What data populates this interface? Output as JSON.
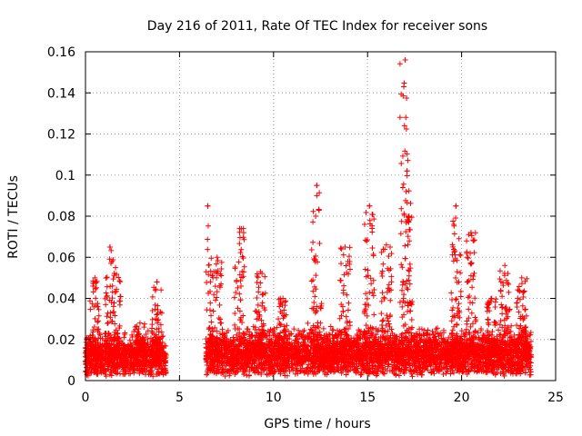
{
  "chart_data": {
    "type": "scatter",
    "title": "Day 216 of 2011, Rate Of TEC Index for receiver sons",
    "xlabel": "GPS time / hours",
    "ylabel": "ROTI / TECUs",
    "xlim": [
      0,
      25
    ],
    "ylim": [
      0,
      0.16
    ],
    "x_ticks": [
      0,
      5,
      10,
      15,
      20,
      25
    ],
    "x_tick_labels": [
      "0",
      "5",
      "10",
      "15",
      "20",
      "25"
    ],
    "y_ticks": [
      0,
      0.02,
      0.04,
      0.06,
      0.08,
      0.1,
      0.12,
      0.14,
      0.16
    ],
    "y_tick_labels": [
      "0",
      "0.02",
      "0.04",
      "0.06",
      "0.08",
      "0.1",
      "0.12",
      "0.14",
      "0.16"
    ],
    "grid": true,
    "marker": "plus",
    "color": "#ff0000",
    "series": [
      {
        "name": "ROTI",
        "segments": [
          {
            "start": 0.0,
            "end": 4.3,
            "base": 0.012,
            "spread": 0.008,
            "peaks": [
              [
                0.5,
                0.05
              ],
              [
                1.3,
                0.065
              ],
              [
                1.6,
                0.055
              ],
              [
                2.9,
                0.028
              ],
              [
                3.8,
                0.048
              ]
            ]
          },
          {
            "start": 6.4,
            "end": 23.7,
            "base": 0.013,
            "spread": 0.009,
            "peaks": [
              [
                6.5,
                0.085
              ],
              [
                7.0,
                0.06
              ],
              [
                8.2,
                0.074
              ],
              [
                9.3,
                0.053
              ],
              [
                10.5,
                0.04
              ],
              [
                12.3,
                0.095
              ],
              [
                13.8,
                0.065
              ],
              [
                15.1,
                0.085
              ],
              [
                16.0,
                0.066
              ],
              [
                17.0,
                0.156
              ],
              [
                17.1,
                0.102
              ],
              [
                19.7,
                0.085
              ],
              [
                20.5,
                0.072
              ],
              [
                21.6,
                0.04
              ],
              [
                22.3,
                0.056
              ],
              [
                23.2,
                0.05
              ]
            ]
          }
        ],
        "notable_points": [
          {
            "x": 6.5,
            "y": 0.085
          },
          {
            "x": 8.4,
            "y": 0.074
          },
          {
            "x": 12.3,
            "y": 0.095
          },
          {
            "x": 12.3,
            "y": 0.09
          },
          {
            "x": 15.1,
            "y": 0.085
          },
          {
            "x": 17.0,
            "y": 0.156
          },
          {
            "x": 17.1,
            "y": 0.102
          },
          {
            "x": 17.05,
            "y": 0.092
          },
          {
            "x": 19.7,
            "y": 0.085
          },
          {
            "x": 20.5,
            "y": 0.072
          },
          {
            "x": 1.3,
            "y": 0.065
          },
          {
            "x": 3.8,
            "y": 0.048
          }
        ]
      }
    ]
  }
}
